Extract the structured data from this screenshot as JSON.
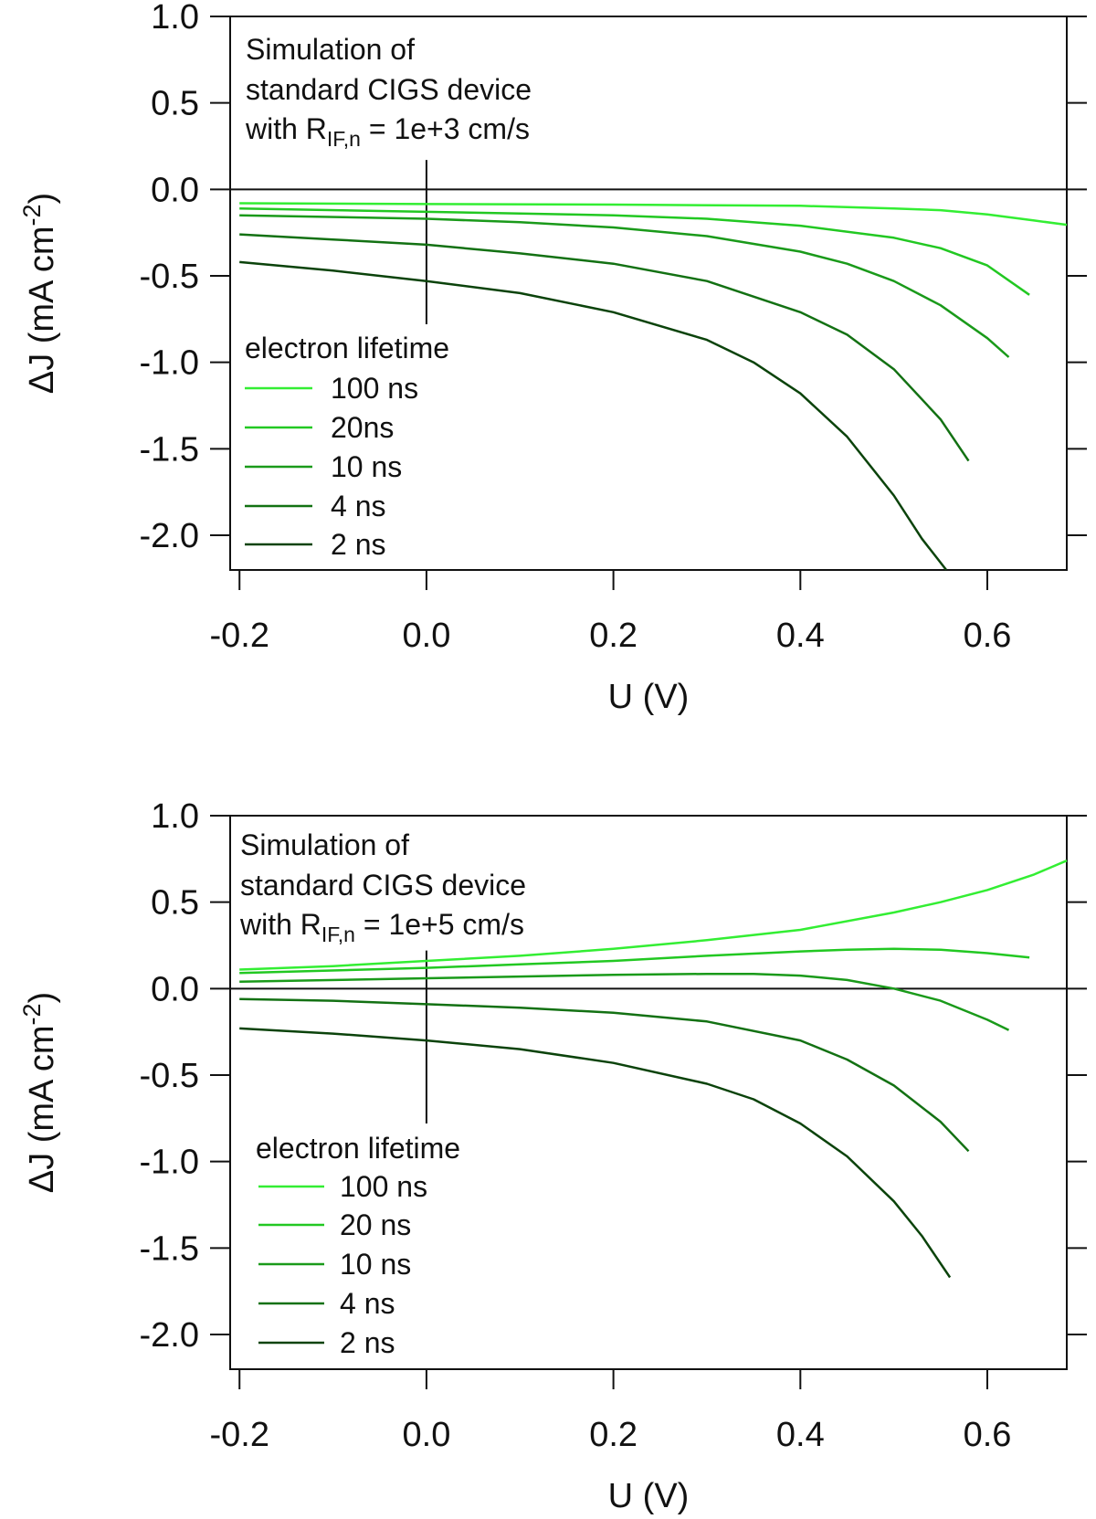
{
  "chart_data": [
    {
      "type": "line",
      "xlabel": "U (V)",
      "ylabel_main": "ΔJ (mA cm",
      "ylabel_exp": "-2",
      "ylabel_tail": ")",
      "xlim": [
        -0.21,
        0.685
      ],
      "ylim": [
        -2.22,
        1.0
      ],
      "xticks": [
        -0.2,
        0.0,
        0.2,
        0.4,
        0.6
      ],
      "xtick_labels": [
        "-0.2",
        "0.0",
        "0.2",
        "0.4",
        "0.6"
      ],
      "yticks": [
        1.0,
        0.5,
        0.0,
        -0.5,
        -1.0,
        -1.5,
        -2.0
      ],
      "ytick_labels": [
        "1.0",
        "0.5",
        "0.0",
        "-0.5",
        "-1.0",
        "-1.5",
        "-2.0"
      ],
      "zero_line": true,
      "vline_x": 0.0,
      "vline_range": [
        -0.78,
        0.17
      ],
      "annotation": {
        "line1": "Simulation of",
        "line2": "standard CIGS device",
        "line3_pre": "with R",
        "line3_sub": "IF,n",
        "line3_post": " = 1e+3 cm/s"
      },
      "legend_title": "electron lifetime",
      "series": [
        {
          "name": "100 ns",
          "color": "#33ee33",
          "x": [
            -0.2,
            0.0,
            0.2,
            0.4,
            0.5,
            0.55,
            0.6,
            0.65,
            0.685
          ],
          "y": [
            -0.08,
            -0.085,
            -0.088,
            -0.095,
            -0.11,
            -0.12,
            -0.145,
            -0.18,
            -0.205
          ]
        },
        {
          "name": "20ns",
          "color": "#22c822",
          "x": [
            -0.2,
            0.0,
            0.1,
            0.2,
            0.3,
            0.4,
            0.5,
            0.55,
            0.6,
            0.645
          ],
          "y": [
            -0.11,
            -0.13,
            -0.14,
            -0.15,
            -0.17,
            -0.21,
            -0.28,
            -0.34,
            -0.44,
            -0.61
          ]
        },
        {
          "name": "10 ns",
          "color": "#1a9a1a",
          "x": [
            -0.2,
            0.0,
            0.1,
            0.2,
            0.3,
            0.4,
            0.45,
            0.5,
            0.55,
            0.6,
            0.623
          ],
          "y": [
            -0.15,
            -0.17,
            -0.19,
            -0.22,
            -0.27,
            -0.36,
            -0.43,
            -0.53,
            -0.67,
            -0.86,
            -0.97
          ]
        },
        {
          "name": "4 ns",
          "color": "#137113",
          "x": [
            -0.2,
            -0.1,
            0.0,
            0.1,
            0.2,
            0.3,
            0.4,
            0.45,
            0.5,
            0.55,
            0.58
          ],
          "y": [
            -0.26,
            -0.29,
            -0.32,
            -0.37,
            -0.43,
            -0.53,
            -0.71,
            -0.84,
            -1.04,
            -1.33,
            -1.57
          ]
        },
        {
          "name": "2 ns",
          "color": "#0b430b",
          "x": [
            -0.2,
            -0.1,
            0.0,
            0.1,
            0.2,
            0.3,
            0.35,
            0.4,
            0.45,
            0.5,
            0.53,
            0.556
          ],
          "y": [
            -0.42,
            -0.47,
            -0.53,
            -0.6,
            -0.71,
            -0.87,
            -1.0,
            -1.18,
            -1.43,
            -1.77,
            -2.02,
            -2.2
          ]
        }
      ]
    },
    {
      "type": "line",
      "xlabel": "U (V)",
      "ylabel_main": "ΔJ (mA cm",
      "ylabel_exp": "-2",
      "ylabel_tail": ")",
      "xlim": [
        -0.21,
        0.685
      ],
      "ylim": [
        -2.22,
        1.0
      ],
      "xticks": [
        -0.2,
        0.0,
        0.2,
        0.4,
        0.6
      ],
      "xtick_labels": [
        "-0.2",
        "0.0",
        "0.2",
        "0.4",
        "0.6"
      ],
      "yticks": [
        1.0,
        0.5,
        0.0,
        -0.5,
        -1.0,
        -1.5,
        -2.0
      ],
      "ytick_labels": [
        "1.0",
        "0.5",
        "0.0",
        "-0.5",
        "-1.0",
        "-1.5",
        "-2.0"
      ],
      "zero_line": true,
      "vline_x": 0.0,
      "vline_range": [
        -0.78,
        0.22
      ],
      "annotation": {
        "line1": "Simulation of",
        "line2": "standard CIGS device",
        "line3_pre": "with R",
        "line3_sub": "IF,n",
        "line3_post": " = 1e+5 cm/s"
      },
      "legend_title": "electron lifetime",
      "series": [
        {
          "name": "100 ns",
          "color": "#33ee33",
          "x": [
            -0.2,
            -0.1,
            0.0,
            0.1,
            0.2,
            0.3,
            0.4,
            0.5,
            0.55,
            0.6,
            0.65,
            0.685
          ],
          "y": [
            0.11,
            0.13,
            0.16,
            0.19,
            0.23,
            0.28,
            0.34,
            0.44,
            0.5,
            0.57,
            0.66,
            0.74
          ]
        },
        {
          "name": "20 ns",
          "color": "#22c822",
          "x": [
            -0.2,
            0.0,
            0.1,
            0.2,
            0.3,
            0.4,
            0.45,
            0.5,
            0.55,
            0.6,
            0.645
          ],
          "y": [
            0.09,
            0.12,
            0.14,
            0.16,
            0.19,
            0.215,
            0.225,
            0.23,
            0.225,
            0.205,
            0.18
          ]
        },
        {
          "name": "10 ns",
          "color": "#1a9a1a",
          "x": [
            -0.2,
            0.0,
            0.1,
            0.2,
            0.3,
            0.35,
            0.4,
            0.45,
            0.5,
            0.55,
            0.6,
            0.623
          ],
          "y": [
            0.04,
            0.06,
            0.07,
            0.08,
            0.085,
            0.085,
            0.075,
            0.05,
            0.0,
            -0.07,
            -0.18,
            -0.24
          ]
        },
        {
          "name": "4 ns",
          "color": "#137113",
          "x": [
            -0.2,
            -0.1,
            0.0,
            0.1,
            0.2,
            0.3,
            0.4,
            0.45,
            0.5,
            0.55,
            0.58
          ],
          "y": [
            -0.06,
            -0.07,
            -0.09,
            -0.11,
            -0.14,
            -0.19,
            -0.3,
            -0.41,
            -0.56,
            -0.77,
            -0.94
          ]
        },
        {
          "name": "2 ns",
          "color": "#0b430b",
          "x": [
            -0.2,
            -0.1,
            0.0,
            0.1,
            0.2,
            0.3,
            0.35,
            0.4,
            0.45,
            0.5,
            0.53,
            0.56
          ],
          "y": [
            -0.23,
            -0.26,
            -0.3,
            -0.35,
            -0.43,
            -0.55,
            -0.64,
            -0.78,
            -0.97,
            -1.23,
            -1.43,
            -1.67
          ]
        }
      ]
    }
  ]
}
